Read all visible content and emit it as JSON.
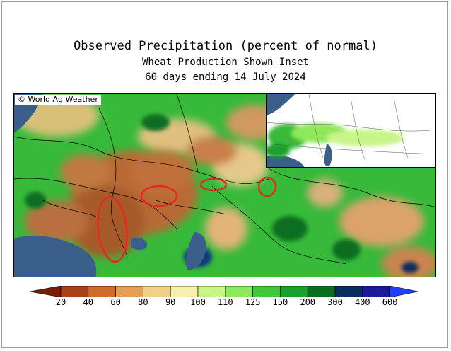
{
  "title": "Observed Precipitation (percent of normal)",
  "subtitle": "Wheat Production Shown Inset",
  "period": "60 days ending 14 July 2024",
  "credit": "© World Ag Weather",
  "legend": {
    "labels": [
      "20",
      "40",
      "60",
      "80",
      "90",
      "100",
      "110",
      "125",
      "150",
      "200",
      "300",
      "400",
      "600"
    ],
    "colors": [
      "#7a1a00",
      "#a8401a",
      "#cf6a2a",
      "#e2a05a",
      "#f2d08a",
      "#f7f0b0",
      "#c8f58a",
      "#8ee85a",
      "#3fc83a",
      "#1aa02e",
      "#0a6e1e",
      "#0a2e5e",
      "#1a1a9e",
      "#2040ff"
    ]
  },
  "colors": {
    "ocean": "#3a5f8a",
    "dry": "#b86a35",
    "normal": "#f0e0a0",
    "wet": "#37b93a",
    "very_wet": "#0e6e22",
    "highlight": "#e8281e"
  }
}
